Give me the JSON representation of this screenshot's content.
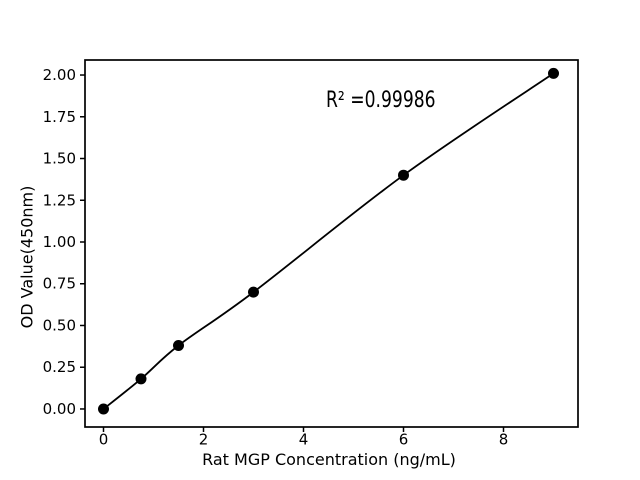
{
  "figure": {
    "background": "#ffffff",
    "foreground": "#000000"
  },
  "chart_data": {
    "type": "line",
    "title": "",
    "xlabel": "Rat MGP Concentration (ng/mL)",
    "ylabel": "OD Value(450nm)",
    "annotation": "R² =0.99986",
    "r_squared": 0.99986,
    "x": [
      0,
      0.75,
      1.5,
      3,
      6,
      9
    ],
    "y": [
      0.0,
      0.18,
      0.38,
      0.7,
      1.4,
      2.01
    ],
    "xticks": [
      0,
      2,
      4,
      6,
      8
    ],
    "xtick_labels": [
      "0",
      "2",
      "4",
      "6",
      "8"
    ],
    "yticks": [
      0,
      0.25,
      0.5,
      0.75,
      1.0,
      1.25,
      1.5,
      1.75,
      2.0
    ],
    "ytick_labels": [
      "0.00",
      "0.25",
      "0.50",
      "0.75",
      "1.00",
      "1.25",
      "1.50",
      "1.75",
      "2.00"
    ],
    "xlim": [
      -0.37,
      9.49
    ],
    "ylim": [
      -0.108,
      2.09
    ],
    "grid": false,
    "legend": null,
    "line_color": "#000000",
    "marker_color": "#000000",
    "marker_style": "filled-circle"
  }
}
